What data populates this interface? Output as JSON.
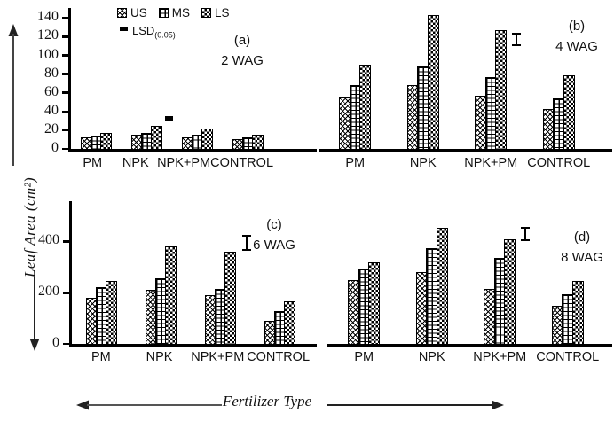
{
  "figure": {
    "y_axis_label": "Leaf Area (cm²)",
    "x_axis_label": "Fertilizer Type"
  },
  "legend": {
    "items": [
      {
        "label": "US",
        "pattern": "diagonal-crosshatch"
      },
      {
        "label": "MS",
        "pattern": "brick"
      },
      {
        "label": "LS",
        "pattern": "checkerboard"
      }
    ],
    "lsd_label": "LSD",
    "lsd_sub": "(0.05)"
  },
  "chart_data": [
    {
      "type": "bar",
      "panel": "(a)",
      "subtitle": "2 WAG",
      "categories": [
        "PM",
        "NPK",
        "NPK+PM",
        "CONTROL"
      ],
      "series": [
        {
          "name": "US",
          "values": [
            12,
            15,
            12,
            10
          ]
        },
        {
          "name": "MS",
          "values": [
            14,
            17,
            15,
            12
          ]
        },
        {
          "name": "LS",
          "values": [
            17,
            25,
            22,
            15
          ]
        }
      ],
      "ylabel": "Leaf Area (cm²)",
      "xlabel": "Fertilizer Type",
      "ylim": [
        0,
        146
      ],
      "yticks": [
        0,
        20,
        40,
        60,
        80,
        100,
        120,
        140
      ],
      "show_y_axis": true,
      "grid": false,
      "lsd": {
        "style": "dash",
        "at_category": "NPK",
        "value": 30
      }
    },
    {
      "type": "bar",
      "panel": "(b)",
      "subtitle": "4 WAG",
      "categories": [
        "PM",
        "NPK",
        "NPK+PM",
        "CONTROL"
      ],
      "series": [
        {
          "name": "US",
          "values": [
            55,
            68,
            57,
            43
          ]
        },
        {
          "name": "MS",
          "values": [
            68,
            88,
            77,
            54
          ]
        },
        {
          "name": "LS",
          "values": [
            90,
            143,
            127,
            79
          ]
        }
      ],
      "ylim": [
        0,
        146
      ],
      "yticks": [],
      "show_y_axis": false,
      "grid": false,
      "lsd": {
        "style": "errorbar",
        "at_category": "NPK+PM",
        "center": 117,
        "half": 7
      }
    },
    {
      "type": "bar",
      "panel": "(c)",
      "subtitle": "6 WAG",
      "categories": [
        "PM",
        "NPK",
        "NPK+PM",
        "CONTROL"
      ],
      "series": [
        {
          "name": "US",
          "values": [
            180,
            210,
            190,
            90
          ]
        },
        {
          "name": "MS",
          "values": [
            220,
            255,
            215,
            128
          ]
        },
        {
          "name": "LS",
          "values": [
            245,
            380,
            360,
            165
          ]
        }
      ],
      "ylim": [
        0,
        540
      ],
      "yticks": [
        0,
        200,
        400
      ],
      "show_y_axis": true,
      "grid": false,
      "lsd": {
        "style": "errorbar",
        "at_category": "NPK+PM",
        "center": 395,
        "half": 30
      }
    },
    {
      "type": "bar",
      "panel": "(d)",
      "subtitle": "8 WAG",
      "categories": [
        "PM",
        "NPK",
        "NPK+PM",
        "CONTROL"
      ],
      "series": [
        {
          "name": "US",
          "values": [
            250,
            280,
            215,
            150
          ]
        },
        {
          "name": "MS",
          "values": [
            295,
            375,
            335,
            195
          ]
        },
        {
          "name": "LS",
          "values": [
            320,
            455,
            410,
            245
          ]
        }
      ],
      "ylim": [
        0,
        540
      ],
      "yticks": [],
      "show_y_axis": false,
      "grid": false,
      "lsd": {
        "style": "errorbar",
        "at_category": "NPK+PM",
        "center": 430,
        "half": 28
      }
    }
  ]
}
